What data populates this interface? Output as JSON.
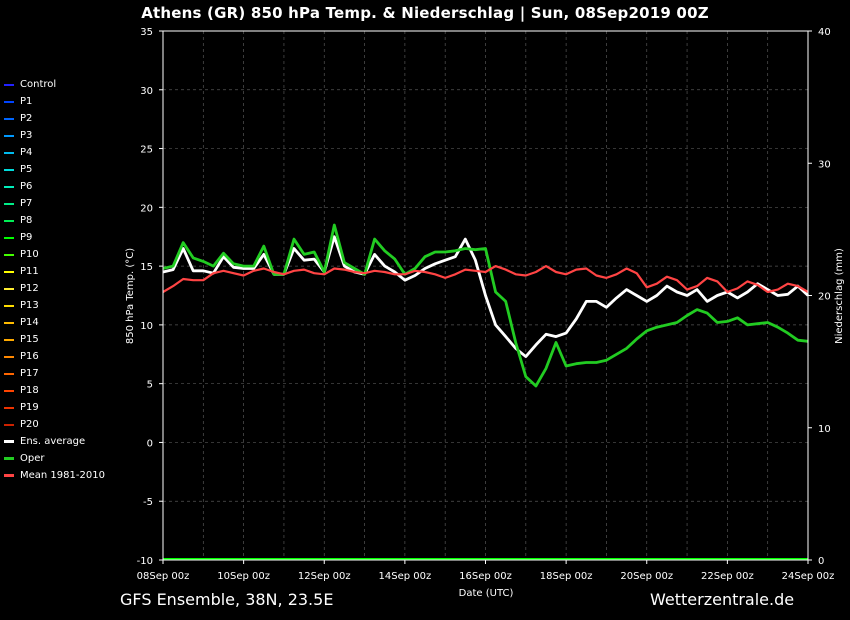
{
  "chart_data": {
    "type": "line",
    "title": "Athens  (GR)  850 hPa Temp. & Niederschlag | Sun, 08Sep2019 00Z",
    "xlabel": "Date (UTC)",
    "ylabel_left": "850 hPa Temp. (°C)",
    "ylabel_right": "Niederschlag (mm)",
    "ylim_left": [
      -10,
      35
    ],
    "ylim_right": [
      0,
      40
    ],
    "yticks_left": [
      "35",
      "30",
      "25",
      "20",
      "15",
      "10",
      "5",
      "0",
      "-5",
      "-10"
    ],
    "yticks_right": [
      "40",
      "30",
      "20",
      "10",
      "0"
    ],
    "xticks": [
      "08Sep 00z",
      "10Sep 00z",
      "12Sep 00z",
      "14Sep 00z",
      "16Sep 00z",
      "18Sep 00z",
      "20Sep 00z",
      "22Sep 00z",
      "24Sep 00z"
    ],
    "x_days": [
      0,
      0.25,
      0.5,
      0.75,
      1,
      1.25,
      1.5,
      1.75,
      2,
      2.25,
      2.5,
      2.75,
      3,
      3.25,
      3.5,
      3.75,
      4,
      4.25,
      4.5,
      4.75,
      5,
      5.25,
      5.5,
      5.75,
      6,
      6.25,
      6.5,
      6.75,
      7,
      7.25,
      7.5,
      7.75,
      8,
      8.25,
      8.5,
      8.75,
      9,
      9.25,
      9.5,
      9.75,
      10,
      10.25,
      10.5,
      10.75,
      11,
      11.25,
      11.5,
      11.75,
      12,
      12.25,
      12.5,
      12.75,
      13,
      13.25,
      13.5,
      13.75,
      14,
      14.25,
      14.5,
      14.75,
      15,
      15.25,
      15.5,
      15.75,
      16
    ],
    "grid": true,
    "legend_position": "left",
    "series": [
      {
        "name": "Control",
        "color": "#2222ff"
      },
      {
        "name": "P1",
        "color": "#0044ff"
      },
      {
        "name": "P2",
        "color": "#0066ff"
      },
      {
        "name": "P3",
        "color": "#0099ff"
      },
      {
        "name": "P4",
        "color": "#00bbee"
      },
      {
        "name": "P5",
        "color": "#00dddd"
      },
      {
        "name": "P6",
        "color": "#00eebb"
      },
      {
        "name": "P7",
        "color": "#00ee88"
      },
      {
        "name": "P8",
        "color": "#00ee55"
      },
      {
        "name": "P9",
        "color": "#00ff00"
      },
      {
        "name": "P10",
        "color": "#44ff00"
      },
      {
        "name": "P11",
        "color": "#ffff00"
      },
      {
        "name": "P12",
        "color": "#ffee33"
      },
      {
        "name": "P13",
        "color": "#ffdd00"
      },
      {
        "name": "P14",
        "color": "#ffbb00"
      },
      {
        "name": "P15",
        "color": "#ffaa00"
      },
      {
        "name": "P16",
        "color": "#ff8800"
      },
      {
        "name": "P17",
        "color": "#ff6600"
      },
      {
        "name": "P18",
        "color": "#ff4400"
      },
      {
        "name": "P19",
        "color": "#ee3300"
      },
      {
        "name": "P20",
        "color": "#cc2200"
      },
      {
        "name": "Ens. average",
        "color": "#ffffff",
        "values": [
          14.5,
          14.7,
          16.5,
          14.6,
          14.6,
          14.4,
          15.8,
          14.9,
          14.8,
          14.8,
          16.0,
          14.3,
          14.3,
          16.5,
          15.5,
          15.6,
          14.5,
          17.5,
          15.0,
          14.5,
          14.3,
          16.0,
          15.0,
          14.5,
          13.8,
          14.2,
          14.8,
          15.2,
          15.5,
          15.8,
          17.3,
          15.5,
          12.5,
          10.0,
          9.0,
          8.0,
          7.3,
          8.3,
          9.2,
          9.0,
          9.3,
          10.5,
          12.0,
          12.0,
          11.5,
          12.3,
          13.0,
          12.5,
          12.0,
          12.5,
          13.3,
          12.8,
          12.5,
          13.0,
          12.0,
          12.5,
          12.8,
          12.3,
          12.8,
          13.5,
          13.0,
          12.5,
          12.6,
          13.3,
          12.5
        ]
      },
      {
        "name": "Oper",
        "color": "#22cc22",
        "values": [
          14.8,
          15.0,
          17.0,
          15.7,
          15.4,
          15.0,
          16.1,
          15.2,
          15.0,
          15.0,
          16.7,
          14.3,
          14.3,
          17.3,
          16.0,
          16.2,
          14.5,
          18.5,
          15.3,
          14.8,
          14.3,
          17.3,
          16.3,
          15.6,
          14.3,
          14.8,
          15.8,
          16.2,
          16.2,
          16.3,
          16.5,
          16.4,
          16.5,
          12.8,
          12.0,
          8.5,
          5.6,
          4.8,
          6.3,
          8.5,
          6.5,
          6.7,
          6.8,
          6.8,
          7.0,
          7.5,
          8.0,
          8.8,
          9.5,
          9.8,
          10.0,
          10.2,
          10.8,
          11.3,
          11.0,
          10.2,
          10.3,
          10.6,
          10.0,
          10.1,
          10.2,
          9.8,
          9.3,
          8.7,
          8.6
        ]
      },
      {
        "name": "Mean 1981-2010",
        "color": "#ff4444",
        "values": [
          12.8,
          13.3,
          13.9,
          13.8,
          13.8,
          14.4,
          14.6,
          14.4,
          14.2,
          14.6,
          14.8,
          14.5,
          14.3,
          14.6,
          14.7,
          14.4,
          14.3,
          14.8,
          14.7,
          14.5,
          14.4,
          14.6,
          14.5,
          14.3,
          14.3,
          14.6,
          14.5,
          14.3,
          14.0,
          14.3,
          14.7,
          14.6,
          14.5,
          15.0,
          14.7,
          14.3,
          14.2,
          14.5,
          15.0,
          14.5,
          14.3,
          14.7,
          14.8,
          14.2,
          14.0,
          14.3,
          14.8,
          14.4,
          13.2,
          13.5,
          14.1,
          13.8,
          13.0,
          13.3,
          14.0,
          13.7,
          12.8,
          13.1,
          13.7,
          13.4,
          12.8,
          13.0,
          13.5,
          13.3,
          12.8
        ]
      }
    ]
  },
  "footer": {
    "left": "GFS Ensemble, 38N, 23.5E",
    "right": "Wetterzentrale.de"
  }
}
